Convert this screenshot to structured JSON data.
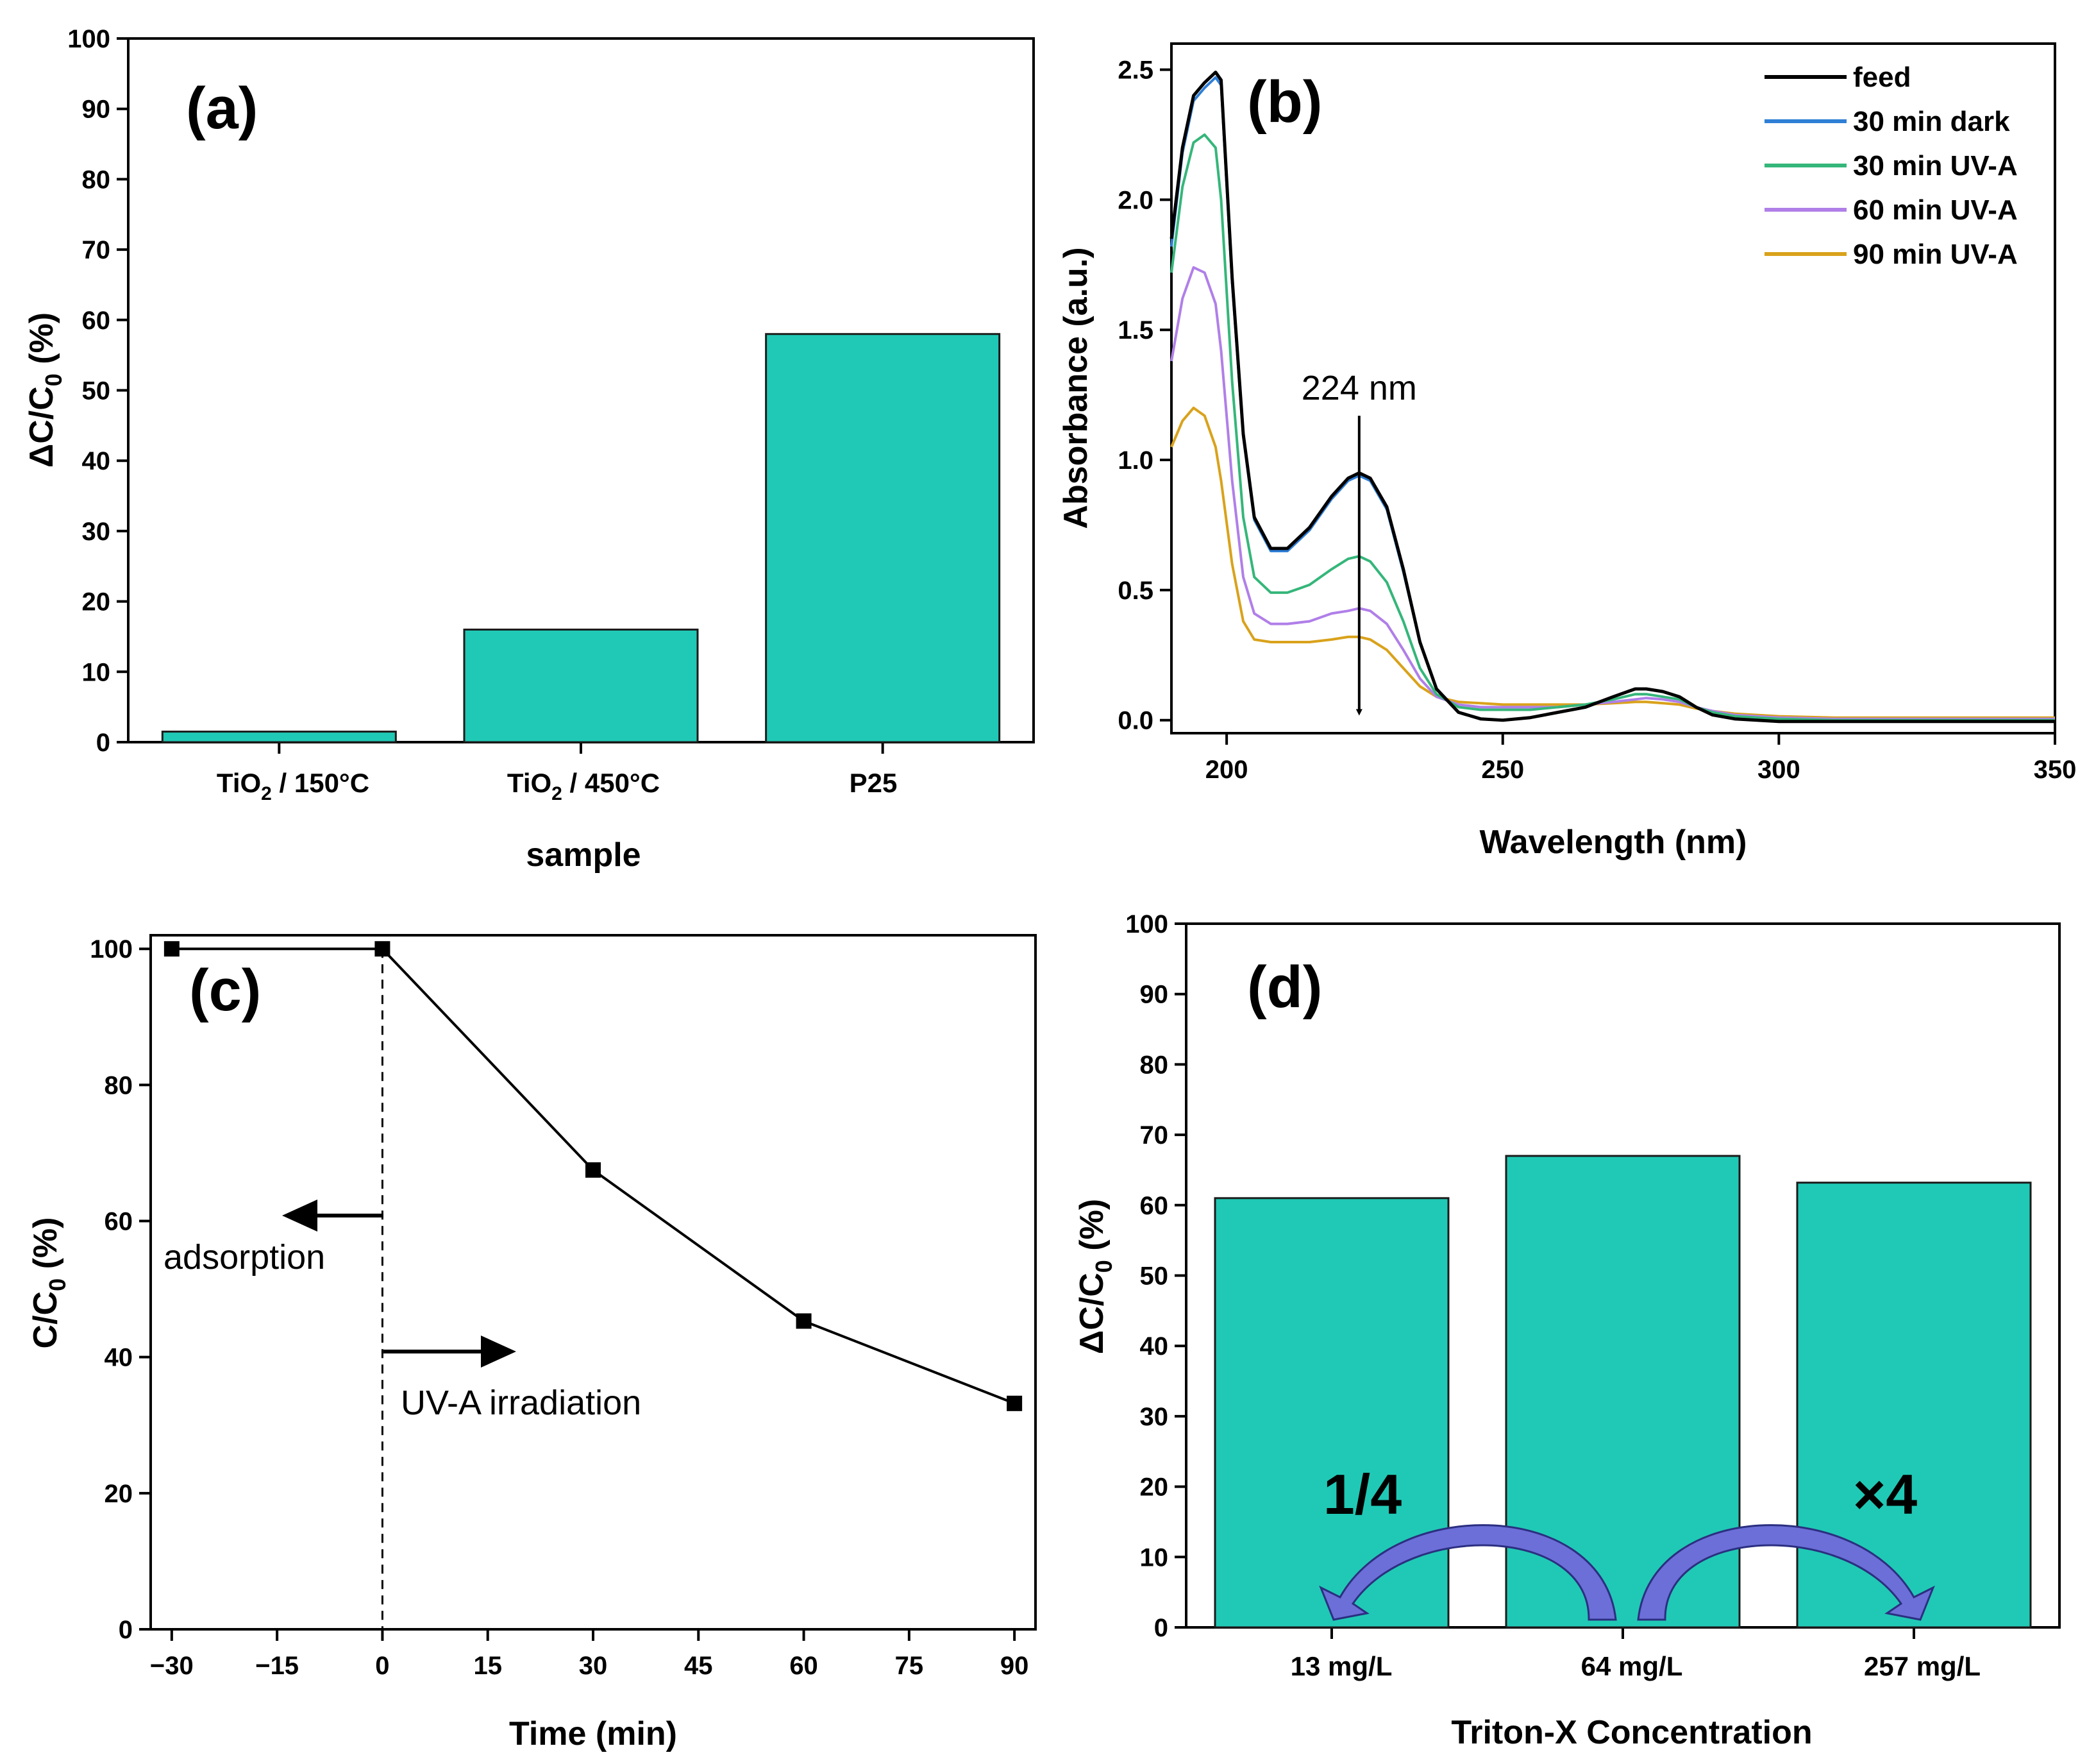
{
  "chart_data": [
    {
      "id": "a",
      "panel_label": "(a)",
      "type": "bar",
      "categories": [
        {
          "main": "TiO",
          "sub": "2",
          "rest": " / 150°C"
        },
        {
          "main": "TiO",
          "sub": "2",
          "rest": " / 450°C"
        },
        {
          "main": "P25",
          "sub": "",
          "rest": ""
        }
      ],
      "values": [
        1.5,
        16,
        58
      ],
      "xlabel": "sample",
      "ylabel": {
        "pre": "ΔC/C",
        "sub": "0",
        "post": " (%)"
      },
      "ylim": [
        0,
        100
      ],
      "yticks": [
        0,
        10,
        20,
        30,
        40,
        50,
        60,
        70,
        80,
        90,
        100
      ],
      "bar_color": "#20c9b5"
    },
    {
      "id": "b",
      "panel_label": "(b)",
      "type": "line",
      "xlabel": "Wavelength (nm)",
      "ylabel": "Absorbance (a.u.)",
      "xlim": [
        190,
        350
      ],
      "ylim": [
        -0.05,
        2.6
      ],
      "xticks": [
        200,
        250,
        300,
        350
      ],
      "yticks": [
        "0.0",
        "0.5",
        "1.0",
        "1.5",
        "2.0",
        "2.5"
      ],
      "annotation": "224 nm",
      "annotation_x": 224,
      "legend": [
        "feed",
        "30 min dark",
        "30 min UV-A",
        "60 min UV-A",
        "90 min UV-A"
      ],
      "colors": [
        "#000000",
        "#2f7fd6",
        "#35b67a",
        "#b07fe8",
        "#d9a21b"
      ],
      "wavelengths": [
        190,
        192,
        194,
        196,
        198,
        199,
        201,
        203,
        205,
        208,
        211,
        215,
        219,
        222,
        224,
        226,
        229,
        232,
        235,
        238,
        242,
        246,
        250,
        255,
        260,
        265,
        270,
        274,
        276,
        279,
        282,
        285,
        288,
        292,
        296,
        300,
        310,
        320,
        330,
        340,
        350
      ],
      "series": [
        {
          "name": "feed",
          "values": [
            1.85,
            2.2,
            2.4,
            2.45,
            2.49,
            2.46,
            1.7,
            1.1,
            0.78,
            0.66,
            0.66,
            0.74,
            0.86,
            0.93,
            0.95,
            0.93,
            0.82,
            0.58,
            0.3,
            0.12,
            0.03,
            0.005,
            0.0,
            0.01,
            0.03,
            0.05,
            0.09,
            0.12,
            0.12,
            0.11,
            0.09,
            0.05,
            0.02,
            0.005,
            0.0,
            -0.005,
            -0.005,
            -0.005,
            -0.005,
            -0.005,
            -0.005
          ]
        },
        {
          "name": "30 min dark",
          "values": [
            1.82,
            2.18,
            2.38,
            2.43,
            2.47,
            2.44,
            1.68,
            1.09,
            0.77,
            0.65,
            0.65,
            0.73,
            0.85,
            0.92,
            0.94,
            0.92,
            0.81,
            0.57,
            0.3,
            0.12,
            0.03,
            0.005,
            0.0,
            0.01,
            0.03,
            0.05,
            0.09,
            0.12,
            0.12,
            0.11,
            0.09,
            0.05,
            0.02,
            0.005,
            0.0,
            -0.005,
            -0.005,
            -0.005,
            -0.005,
            -0.005,
            -0.005
          ]
        },
        {
          "name": "30 min UV-A",
          "values": [
            1.72,
            2.05,
            2.22,
            2.25,
            2.2,
            2.0,
            1.3,
            0.78,
            0.55,
            0.49,
            0.49,
            0.52,
            0.58,
            0.62,
            0.63,
            0.61,
            0.53,
            0.38,
            0.2,
            0.1,
            0.05,
            0.04,
            0.04,
            0.04,
            0.05,
            0.06,
            0.08,
            0.1,
            0.1,
            0.09,
            0.08,
            0.05,
            0.03,
            0.015,
            0.01,
            0.005,
            0.0,
            0.0,
            0.0,
            0.0,
            0.0
          ]
        },
        {
          "name": "60 min UV-A",
          "values": [
            1.38,
            1.62,
            1.74,
            1.72,
            1.6,
            1.42,
            0.92,
            0.55,
            0.41,
            0.37,
            0.37,
            0.38,
            0.41,
            0.42,
            0.43,
            0.42,
            0.37,
            0.27,
            0.16,
            0.09,
            0.06,
            0.05,
            0.05,
            0.05,
            0.05,
            0.06,
            0.07,
            0.08,
            0.085,
            0.08,
            0.07,
            0.05,
            0.035,
            0.02,
            0.015,
            0.01,
            0.005,
            0.005,
            0.005,
            0.005,
            0.005
          ]
        },
        {
          "name": "90 min UV-A",
          "values": [
            1.05,
            1.15,
            1.2,
            1.17,
            1.05,
            0.92,
            0.6,
            0.38,
            0.31,
            0.3,
            0.3,
            0.3,
            0.31,
            0.32,
            0.32,
            0.31,
            0.27,
            0.2,
            0.13,
            0.09,
            0.07,
            0.065,
            0.06,
            0.06,
            0.06,
            0.06,
            0.065,
            0.07,
            0.07,
            0.065,
            0.06,
            0.045,
            0.035,
            0.025,
            0.02,
            0.015,
            0.01,
            0.01,
            0.01,
            0.01,
            0.01
          ]
        }
      ]
    },
    {
      "id": "c",
      "panel_label": "(c)",
      "type": "line",
      "x": [
        -30,
        0,
        30,
        60,
        90
      ],
      "y": [
        100,
        100,
        67.5,
        45.3,
        33.2
      ],
      "xlabel": "Time (min)",
      "ylabel": {
        "pre": "C/C",
        "sub": "0",
        "post": " (%)"
      },
      "xlim": [
        -33,
        93
      ],
      "ylim": [
        0,
        102
      ],
      "xticks": [
        "−30",
        "−15",
        "0",
        "15",
        "30",
        "45",
        "60",
        "75",
        "90"
      ],
      "xtick_values": [
        -30,
        -15,
        0,
        15,
        30,
        45,
        60,
        75,
        90
      ],
      "yticks": [
        0,
        20,
        40,
        60,
        80,
        100
      ],
      "annotation_left": "adsorption",
      "annotation_right": "UV-A irradiation"
    },
    {
      "id": "d",
      "panel_label": "(d)",
      "type": "bar",
      "categories": [
        "13 mg/L",
        "64 mg/L",
        "257 mg/L"
      ],
      "values": [
        61,
        67,
        63.2
      ],
      "xlabel": "Triton-X Concentration",
      "ylabel": {
        "pre": "ΔC/C",
        "sub": "0",
        "post": " (%)"
      },
      "ylim": [
        0,
        100
      ],
      "yticks": [
        0,
        10,
        20,
        30,
        40,
        50,
        60,
        70,
        80,
        90,
        100
      ],
      "bar_color": "#20c9b5",
      "arrow_left_label": "1/4",
      "arrow_right_label": "×4",
      "arrow_color": "#6c6fd8"
    }
  ]
}
